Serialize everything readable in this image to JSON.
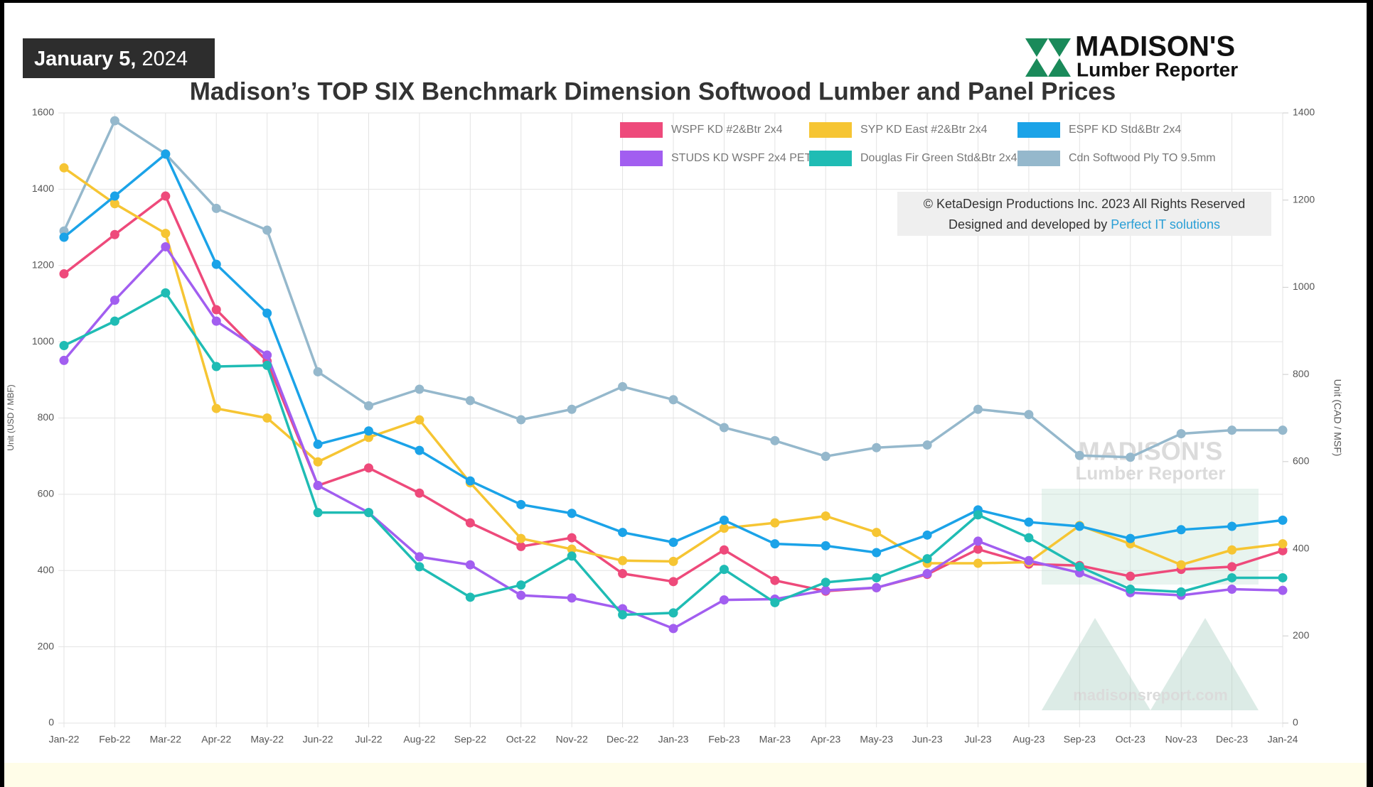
{
  "date": {
    "day": "January 5,",
    "year": "2024"
  },
  "logo": {
    "name": "MADISON'S",
    "sub": "Lumber Reporter"
  },
  "copyright": {
    "line1": "© KetaDesign Productions Inc. 2023 All Rights Reserved",
    "line2": "Designed and developed by",
    "link": "Perfect IT solutions"
  },
  "watermark": {
    "name": "MADISON'S",
    "sub": "Lumber Reporter",
    "url": "madisonsreport.com"
  },
  "chart_data": {
    "type": "line",
    "title": "Madison’s TOP SIX Benchmark Dimension Softwood Lumber and Panel Prices",
    "y_label": "Unit (USD / MBF)",
    "y2_label": "Unit (CAD / MSF)",
    "categories": [
      "Jan-22",
      "Feb-22",
      "Mar-22",
      "Apr-22",
      "May-22",
      "Jun-22",
      "Jul-22",
      "Aug-22",
      "Sep-22",
      "Oct-22",
      "Nov-22",
      "Dec-22",
      "Jan-23",
      "Feb-23",
      "Mar-23",
      "Apr-23",
      "May-23",
      "Jun-23",
      "Jul-23",
      "Aug-23",
      "Sep-23",
      "Oct-23",
      "Nov-23",
      "Dec-23",
      "Jan-24"
    ],
    "ylim": [
      0,
      1600
    ],
    "yticks": [
      0,
      200,
      400,
      600,
      800,
      1000,
      1200,
      1400,
      1600
    ],
    "y2lim": [
      0,
      1400
    ],
    "y2ticks": [
      0,
      200,
      400,
      600,
      800,
      1000,
      1200,
      1400
    ],
    "grid": true,
    "series": [
      {
        "name": "WSPF KD #2&Btr 2x4",
        "color": "#ee4a7b",
        "values": [
          1178,
          1281,
          1382,
          1084,
          949,
          623,
          669,
          603,
          525,
          463,
          486,
          392,
          371,
          454,
          374,
          346,
          355,
          390,
          456,
          417,
          413,
          385,
          403,
          410,
          452
        ]
      },
      {
        "name": "SYP KD East #2&Btr 2x4",
        "color": "#f6c533",
        "values": [
          1456,
          1362,
          1284,
          825,
          800,
          685,
          749,
          795,
          630,
          484,
          456,
          426,
          424,
          511,
          525,
          543,
          500,
          419,
          419,
          422,
          518,
          470,
          415,
          454,
          470
        ]
      },
      {
        "name": "ESPF KD Std&Btr 2x4",
        "color": "#1ba3e8",
        "values": [
          1274,
          1382,
          1492,
          1203,
          1075,
          731,
          766,
          715,
          635,
          573,
          550,
          500,
          474,
          532,
          470,
          465,
          447,
          493,
          559,
          527,
          516,
          484,
          507,
          516,
          532
        ]
      },
      {
        "name": "STUDS KD WSPF 2x4 PET",
        "color": "#a25ef0",
        "values": [
          951,
          1109,
          1249,
          1054,
          965,
          623,
          552,
          436,
          415,
          335,
          328,
          300,
          248,
          323,
          325,
          348,
          355,
          392,
          477,
          426,
          394,
          342,
          335,
          351,
          348
        ]
      },
      {
        "name": "Douglas Fir Green Std&Btr 2x4",
        "color": "#1fbcb4",
        "values": [
          990,
          1054,
          1128,
          935,
          938,
          552,
          552,
          410,
          330,
          362,
          438,
          284,
          289,
          403,
          316,
          369,
          381,
          431,
          546,
          486,
          410,
          351,
          344,
          381,
          381
        ]
      },
      {
        "name": "Cdn Softwood Ply TO 9.5mm",
        "color": "#95b8cc",
        "axis": "y2",
        "values": [
          1129,
          1382,
          1306,
          1181,
          1131,
          806,
          728,
          766,
          740,
          696,
          720,
          772,
          742,
          678,
          648,
          612,
          632,
          638,
          720,
          708,
          614,
          610,
          664,
          672,
          672
        ]
      }
    ]
  }
}
